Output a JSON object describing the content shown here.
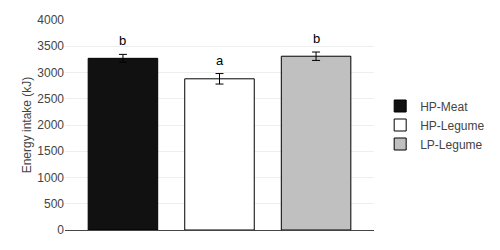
{
  "chart_data": {
    "type": "bar",
    "categories": [
      "HP-Meat",
      "HP-Legume",
      "LP-Legume"
    ],
    "values": [
      3270,
      2880,
      3310
    ],
    "errors": [
      75,
      100,
      80
    ],
    "colors": [
      "#111111",
      "white",
      "#c0c0c0"
    ],
    "annotations": [
      {
        "category": "HP-Meat",
        "text": "b"
      },
      {
        "category": "HP-Legume",
        "text": "a"
      },
      {
        "category": "LP-Legume",
        "text": "b"
      }
    ],
    "ylabel": "Energy intake (kJ)",
    "ylim": [
      0,
      4000
    ],
    "yticks": [
      0,
      500,
      1000,
      1500,
      2000,
      2500,
      3000,
      3500,
      4000
    ],
    "grid": true,
    "legend": "right",
    "tick_labels": "y"
  }
}
